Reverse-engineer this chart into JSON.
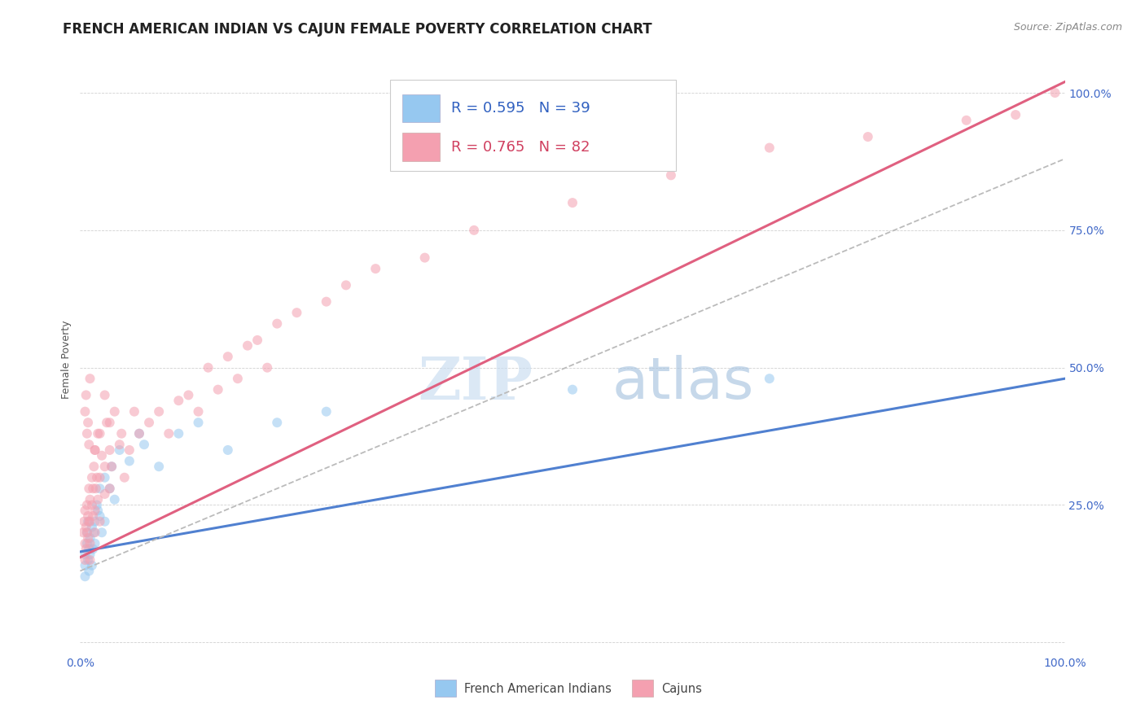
{
  "title": "FRENCH AMERICAN INDIAN VS CAJUN FEMALE POVERTY CORRELATION CHART",
  "source": "Source: ZipAtlas.com",
  "ylabel": "Female Poverty",
  "watermark_zip": "ZIP",
  "watermark_atlas": "atlas",
  "blue_color": "#96C8F0",
  "pink_color": "#F4A0B0",
  "blue_line_color": "#5080D0",
  "pink_line_color": "#E06080",
  "dashed_line_color": "#BBBBBB",
  "background_color": "#FFFFFF",
  "legend_blue_r": "0.595",
  "legend_blue_n": "39",
  "legend_pink_r": "0.765",
  "legend_pink_n": "82",
  "bottom_blue_label": "French American Indians",
  "bottom_pink_label": "Cajuns",
  "blue_scatter_x": [
    0.005,
    0.005,
    0.005,
    0.007,
    0.007,
    0.008,
    0.008,
    0.009,
    0.009,
    0.01,
    0.01,
    0.012,
    0.012,
    0.013,
    0.014,
    0.015,
    0.015,
    0.017,
    0.018,
    0.02,
    0.02,
    0.022,
    0.025,
    0.025,
    0.03,
    0.032,
    0.035,
    0.04,
    0.05,
    0.06,
    0.065,
    0.08,
    0.1,
    0.12,
    0.15,
    0.2,
    0.25,
    0.5,
    0.7
  ],
  "blue_scatter_y": [
    0.16,
    0.14,
    0.12,
    0.18,
    0.2,
    0.22,
    0.15,
    0.17,
    0.13,
    0.16,
    0.19,
    0.21,
    0.14,
    0.17,
    0.2,
    0.22,
    0.18,
    0.25,
    0.24,
    0.28,
    0.23,
    0.2,
    0.3,
    0.22,
    0.28,
    0.32,
    0.26,
    0.35,
    0.33,
    0.38,
    0.36,
    0.32,
    0.38,
    0.4,
    0.35,
    0.4,
    0.42,
    0.46,
    0.48
  ],
  "pink_scatter_x": [
    0.003,
    0.004,
    0.005,
    0.005,
    0.005,
    0.006,
    0.006,
    0.007,
    0.007,
    0.008,
    0.008,
    0.009,
    0.009,
    0.01,
    0.01,
    0.01,
    0.01,
    0.012,
    0.012,
    0.013,
    0.013,
    0.014,
    0.015,
    0.015,
    0.015,
    0.016,
    0.017,
    0.018,
    0.018,
    0.02,
    0.02,
    0.022,
    0.025,
    0.025,
    0.027,
    0.03,
    0.03,
    0.032,
    0.035,
    0.04,
    0.042,
    0.045,
    0.05,
    0.055,
    0.06,
    0.07,
    0.08,
    0.09,
    0.1,
    0.11,
    0.12,
    0.13,
    0.14,
    0.15,
    0.16,
    0.17,
    0.18,
    0.19,
    0.2,
    0.22,
    0.25,
    0.27,
    0.3,
    0.35,
    0.4,
    0.5,
    0.6,
    0.7,
    0.8,
    0.9,
    0.95,
    0.99,
    0.005,
    0.006,
    0.007,
    0.008,
    0.009,
    0.01,
    0.015,
    0.02,
    0.025,
    0.03
  ],
  "pink_scatter_y": [
    0.2,
    0.22,
    0.15,
    0.18,
    0.24,
    0.17,
    0.21,
    0.2,
    0.25,
    0.19,
    0.23,
    0.28,
    0.22,
    0.15,
    0.18,
    0.22,
    0.26,
    0.25,
    0.3,
    0.23,
    0.28,
    0.32,
    0.2,
    0.24,
    0.35,
    0.28,
    0.3,
    0.26,
    0.38,
    0.22,
    0.3,
    0.34,
    0.27,
    0.32,
    0.4,
    0.28,
    0.35,
    0.32,
    0.42,
    0.36,
    0.38,
    0.3,
    0.35,
    0.42,
    0.38,
    0.4,
    0.42,
    0.38,
    0.44,
    0.45,
    0.42,
    0.5,
    0.46,
    0.52,
    0.48,
    0.54,
    0.55,
    0.5,
    0.58,
    0.6,
    0.62,
    0.65,
    0.68,
    0.7,
    0.75,
    0.8,
    0.85,
    0.9,
    0.92,
    0.95,
    0.96,
    1.0,
    0.42,
    0.45,
    0.38,
    0.4,
    0.36,
    0.48,
    0.35,
    0.38,
    0.45,
    0.4
  ],
  "blue_line_x": [
    0.0,
    1.0
  ],
  "blue_line_y": [
    0.165,
    0.48
  ],
  "pink_line_x": [
    0.0,
    1.0
  ],
  "pink_line_y": [
    0.155,
    1.02
  ],
  "dashed_line_x": [
    0.0,
    1.0
  ],
  "dashed_line_y": [
    0.13,
    0.88
  ],
  "xlim": [
    0.0,
    1.0
  ],
  "ylim": [
    -0.02,
    1.05
  ],
  "title_fontsize": 12,
  "source_fontsize": 9,
  "axis_label_fontsize": 9,
  "tick_fontsize": 10,
  "marker_size": 75,
  "marker_alpha": 0.55
}
